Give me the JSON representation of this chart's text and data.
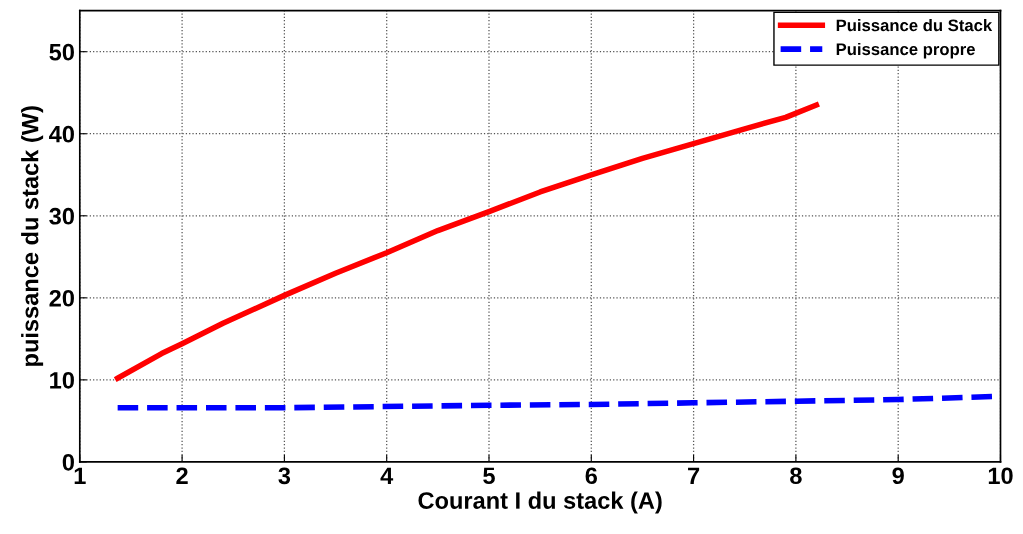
{
  "chart_data": {
    "type": "line",
    "xlabel": "Courant I du stack (A)",
    "ylabel": "puissance du stack (W)",
    "xlim": [
      1,
      10
    ],
    "ylim": [
      0,
      55
    ],
    "xticks": [
      1,
      2,
      3,
      4,
      5,
      6,
      7,
      8,
      9,
      10
    ],
    "yticks": [
      0,
      10,
      20,
      30,
      40,
      50
    ],
    "grid": true,
    "legend": "top right",
    "series": [
      {
        "name": "Puissance du Stack",
        "color": "#ff0000",
        "line_style": "solid",
        "x": [
          1.37,
          1.8,
          2.0,
          2.4,
          3.0,
          3.5,
          4.0,
          4.5,
          5.0,
          5.5,
          6.0,
          6.5,
          7.0,
          7.5,
          7.9,
          8.2
        ],
        "values": [
          10.2,
          13.2,
          14.4,
          16.9,
          20.3,
          23.0,
          25.5,
          28.2,
          30.5,
          32.9,
          35.0,
          37.0,
          38.8,
          40.6,
          42.0,
          43.5
        ]
      },
      {
        "name": "Puissance propre",
        "color": "#0000ff",
        "line_style": "dashed",
        "x": [
          1.37,
          3.0,
          5.0,
          6.0,
          7.0,
          8.0,
          9.0,
          10.0
        ],
        "values": [
          6.6,
          6.6,
          6.9,
          7.0,
          7.2,
          7.4,
          7.6,
          8.0
        ]
      }
    ]
  }
}
